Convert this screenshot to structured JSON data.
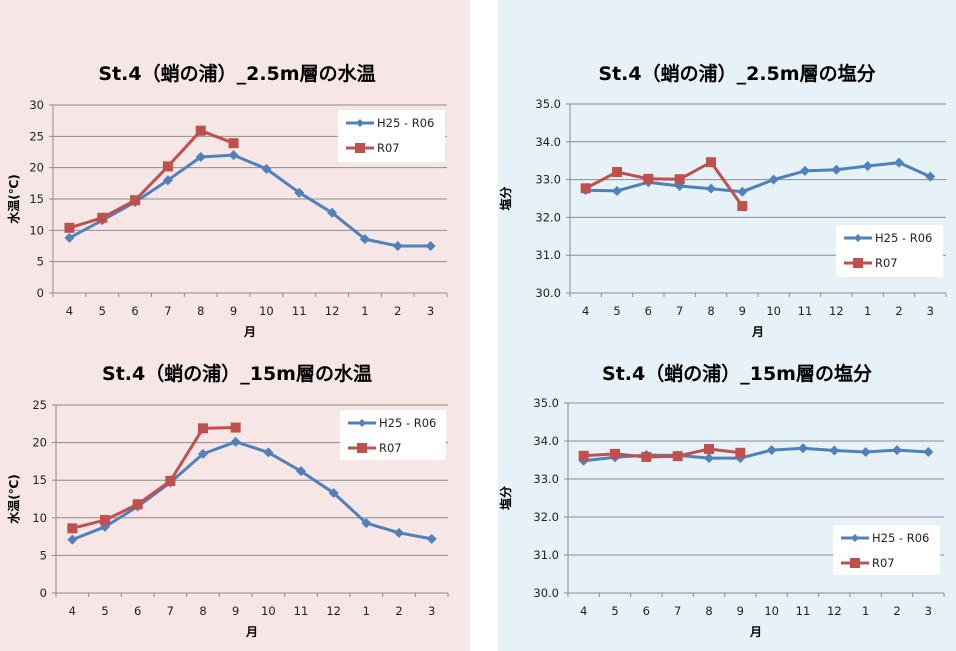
{
  "chart_data": [
    {
      "id": "temp25",
      "type": "line",
      "title": "St.4（蛸の浦）_2.5m層の水温",
      "xlabel": "月",
      "ylabel": "水温(℃)",
      "categories": [
        "4",
        "5",
        "6",
        "7",
        "8",
        "9",
        "10",
        "11",
        "12",
        "1",
        "2",
        "3"
      ],
      "ylim": [
        0,
        30
      ],
      "yticks": [
        0,
        5,
        10,
        15,
        20,
        25,
        30
      ],
      "ytick_labels": [
        "0",
        "5",
        "10",
        "15",
        "20",
        "25",
        "30"
      ],
      "grid": true,
      "legend": "top-right",
      "series": [
        {
          "name": "H25 - R06",
          "color": "#4f81bd",
          "marker": "diamond",
          "values": [
            8.8,
            11.6,
            14.5,
            18.0,
            21.7,
            22.0,
            19.8,
            16.0,
            12.8,
            8.6,
            7.5,
            7.5
          ]
        },
        {
          "name": "R07",
          "color": "#c0504d",
          "marker": "square",
          "values": [
            10.4,
            12.0,
            14.8,
            20.2,
            25.9,
            23.9,
            null,
            null,
            null,
            null,
            null,
            null
          ]
        }
      ]
    },
    {
      "id": "sal25",
      "type": "line",
      "title": "St.4（蛸の浦）_2.5m層の塩分",
      "xlabel": "月",
      "ylabel": "塩分",
      "categories": [
        "4",
        "5",
        "6",
        "7",
        "8",
        "9",
        "10",
        "11",
        "12",
        "1",
        "2",
        "3"
      ],
      "ylim": [
        30,
        35
      ],
      "yticks": [
        30,
        31,
        32,
        33,
        34,
        35
      ],
      "ytick_labels": [
        "30.0",
        "31.0",
        "32.0",
        "33.0",
        "34.0",
        "35.0"
      ],
      "grid": true,
      "legend": "bottom-right",
      "series": [
        {
          "name": "H25 - R06",
          "color": "#4f81bd",
          "marker": "diamond",
          "values": [
            32.72,
            32.7,
            32.93,
            32.83,
            32.76,
            32.68,
            33.0,
            33.23,
            33.26,
            33.36,
            33.45,
            33.08
          ]
        },
        {
          "name": "R07",
          "color": "#c0504d",
          "marker": "square",
          "values": [
            32.77,
            33.2,
            33.02,
            33.01,
            33.46,
            32.3,
            null,
            null,
            null,
            null,
            null,
            null
          ]
        }
      ]
    },
    {
      "id": "temp15",
      "type": "line",
      "title": "St.4（蛸の浦）_15m層の水温",
      "xlabel": "月",
      "ylabel": "水温(℃)",
      "categories": [
        "4",
        "5",
        "6",
        "7",
        "8",
        "9",
        "10",
        "11",
        "12",
        "1",
        "2",
        "3"
      ],
      "ylim": [
        0,
        25
      ],
      "yticks": [
        0,
        5,
        10,
        15,
        20,
        25
      ],
      "ytick_labels": [
        "0",
        "5",
        "10",
        "15",
        "20",
        "25"
      ],
      "grid": true,
      "legend": "top-right",
      "series": [
        {
          "name": "H25 - R06",
          "color": "#4f81bd",
          "marker": "diamond",
          "values": [
            7.1,
            8.8,
            11.5,
            14.7,
            18.5,
            20.1,
            18.7,
            16.2,
            13.3,
            9.3,
            8.0,
            7.2
          ]
        },
        {
          "name": "R07",
          "color": "#c0504d",
          "marker": "square",
          "values": [
            8.6,
            9.7,
            11.8,
            14.9,
            21.9,
            22.0,
            null,
            null,
            null,
            null,
            null,
            null
          ]
        }
      ]
    },
    {
      "id": "sal15",
      "type": "line",
      "title": "St.4（蛸の浦）_15m層の塩分",
      "xlabel": "月",
      "ylabel": "塩分",
      "categories": [
        "4",
        "5",
        "6",
        "7",
        "8",
        "9",
        "10",
        "11",
        "12",
        "1",
        "2",
        "3"
      ],
      "ylim": [
        30,
        35
      ],
      "yticks": [
        30,
        31,
        32,
        33,
        34,
        35
      ],
      "ytick_labels": [
        "30.0",
        "31.0",
        "32.0",
        "33.0",
        "34.0",
        "35.0"
      ],
      "grid": true,
      "legend": "bottom-right",
      "series": [
        {
          "name": "H25 - R06",
          "color": "#4f81bd",
          "marker": "diamond",
          "values": [
            33.48,
            33.57,
            33.63,
            33.62,
            33.55,
            33.55,
            33.76,
            33.81,
            33.75,
            33.71,
            33.76,
            33.71
          ]
        },
        {
          "name": "R07",
          "color": "#c0504d",
          "marker": "square",
          "values": [
            33.61,
            33.66,
            33.58,
            33.6,
            33.79,
            33.69,
            null,
            null,
            null,
            null,
            null,
            null
          ]
        }
      ]
    }
  ]
}
